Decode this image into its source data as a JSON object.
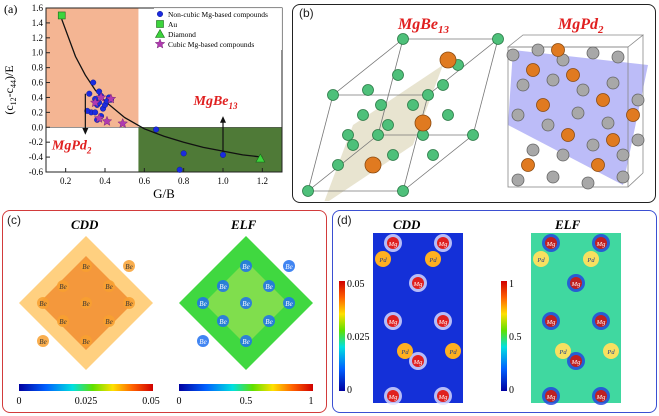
{
  "panels": {
    "a": {
      "label": "(a)"
    },
    "b": {
      "label": "(b)",
      "left_title": "MgBe",
      "left_sub": "13",
      "right_title": "MgPd",
      "right_sub": "2"
    },
    "c": {
      "label": "(c)",
      "left_title": "CDD",
      "right_title": "ELF",
      "atom_label": "Be",
      "cbar_left": {
        "ticks": [
          "0",
          "0.025",
          "0.05"
        ]
      },
      "cbar_right": {
        "ticks": [
          "0",
          "0.5",
          "1"
        ]
      }
    },
    "d": {
      "label": "(d)",
      "left_title": "CDD",
      "right_title": "ELF",
      "atom_mg": "Mg",
      "atom_pd": "Pd",
      "cbar_left": {
        "ticks": [
          "0.05",
          "0.025",
          "0"
        ]
      },
      "cbar_right": {
        "ticks": [
          "1",
          "0.5",
          "0"
        ]
      }
    }
  },
  "chart_data": {
    "type": "scatter",
    "xlabel": "G/B",
    "ylabel": "(c12-c44)/E",
    "ylabel_main": "(c",
    "ylabel_sub1": "12",
    "ylabel_mid": "-c",
    "ylabel_sub2": "44",
    "ylabel_end": ")/E",
    "xlim": [
      0.1,
      1.3
    ],
    "ylim": [
      -0.6,
      1.6
    ],
    "xticks": [
      0.2,
      0.4,
      0.6,
      0.8,
      1.0,
      1.2
    ],
    "yticks": [
      -0.6,
      -0.4,
      -0.2,
      0.0,
      0.2,
      0.4,
      0.6,
      0.8,
      1.0,
      1.2,
      1.4,
      1.6
    ],
    "legend_position": "top-right",
    "annotations": [
      {
        "text": "MgBe",
        "sub": "13",
        "color": "#e02020"
      },
      {
        "text": "MgPd",
        "sub": "2",
        "color": "#e02020"
      }
    ],
    "series": [
      {
        "name": "Non-cubic Mg-based compounds",
        "marker": "circle",
        "color": "#1b2be0",
        "points": [
          [
            0.32,
            0.45
          ],
          [
            0.34,
            0.6
          ],
          [
            0.35,
            0.38
          ],
          [
            0.36,
            0.3
          ],
          [
            0.37,
            0.33
          ],
          [
            0.38,
            0.42
          ],
          [
            0.39,
            0.25
          ],
          [
            0.33,
            0.2
          ],
          [
            0.31,
            0.22
          ],
          [
            0.36,
            0.1
          ],
          [
            0.4,
            0.3
          ],
          [
            0.42,
            0.4
          ],
          [
            0.41,
            0.35
          ],
          [
            0.35,
            0.2
          ],
          [
            0.38,
            0.15
          ],
          [
            0.66,
            -0.03
          ],
          [
            0.78,
            -0.57
          ],
          [
            0.8,
            -0.35
          ],
          [
            1.0,
            -0.37
          ],
          [
            0.43,
            0.37
          ],
          [
            0.37,
            0.48
          ]
        ]
      },
      {
        "name": "Au",
        "marker": "square",
        "color": "#3cd43c",
        "points": [
          [
            0.18,
            1.5
          ]
        ]
      },
      {
        "name": "Diamond",
        "marker": "triangle",
        "color": "#3cd43c",
        "points": [
          [
            1.19,
            -0.42
          ]
        ]
      },
      {
        "name": "Cubic Mg-based compounds",
        "marker": "star",
        "color": "#b03ab0",
        "points": [
          [
            0.38,
            0.4
          ],
          [
            0.41,
            0.08
          ],
          [
            0.43,
            0.38
          ],
          [
            0.49,
            0.05
          ],
          [
            0.37,
            0.12
          ],
          [
            0.35,
            0.33
          ]
        ]
      }
    ],
    "fit_curve": {
      "x": [
        0.18,
        0.25,
        0.3,
        0.35,
        0.4,
        0.5,
        0.6,
        0.7,
        0.8,
        0.9,
        1.0,
        1.1,
        1.2
      ],
      "y": [
        1.45,
        0.95,
        0.7,
        0.5,
        0.35,
        0.13,
        -0.02,
        -0.12,
        -0.2,
        -0.27,
        -0.32,
        -0.37,
        -0.4
      ]
    },
    "regions": [
      {
        "name": "ductile-region",
        "color": "#f4b593",
        "x": [
          0.1,
          0.57
        ],
        "y": [
          0.0,
          1.6
        ]
      },
      {
        "name": "brittle-region",
        "color": "#4f7a37",
        "x": [
          0.57,
          1.3
        ],
        "y": [
          -0.6,
          0.0
        ]
      }
    ]
  }
}
